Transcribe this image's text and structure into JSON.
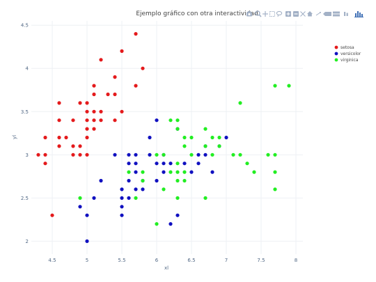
{
  "chart_data": {
    "type": "scatter",
    "title": "Ejemplo gráfico con otra interactividad",
    "xlabel": "xl",
    "ylabel": "yl",
    "xlim": [
      4.2,
      8.1
    ],
    "ylim": [
      1.85,
      4.55
    ],
    "x_ticks": [
      "4.5",
      "5",
      "5.5",
      "6",
      "6.5",
      "7",
      "7.5",
      "8"
    ],
    "y_ticks": [
      "2",
      "2.5",
      "3",
      "3.5",
      "4",
      "4.5"
    ],
    "grid": true,
    "legend_position": "top-right",
    "series": [
      {
        "name": "setosa",
        "color": "#e41a1c",
        "points": [
          [
            4.3,
            3.0
          ],
          [
            4.4,
            3.2
          ],
          [
            4.4,
            3.0
          ],
          [
            4.4,
            2.9
          ],
          [
            4.5,
            2.3
          ],
          [
            4.6,
            3.6
          ],
          [
            4.6,
            3.4
          ],
          [
            4.6,
            3.2
          ],
          [
            4.6,
            3.1
          ],
          [
            4.7,
            3.2
          ],
          [
            4.8,
            3.4
          ],
          [
            4.8,
            3.1
          ],
          [
            4.8,
            3.0
          ],
          [
            4.9,
            3.6
          ],
          [
            4.9,
            3.1
          ],
          [
            4.9,
            3.0
          ],
          [
            5.0,
            3.6
          ],
          [
            5.0,
            3.5
          ],
          [
            5.0,
            3.4
          ],
          [
            5.0,
            3.3
          ],
          [
            5.0,
            3.2
          ],
          [
            5.0,
            3.0
          ],
          [
            5.1,
            3.8
          ],
          [
            5.1,
            3.7
          ],
          [
            5.1,
            3.5
          ],
          [
            5.1,
            3.4
          ],
          [
            5.1,
            3.3
          ],
          [
            5.2,
            4.1
          ],
          [
            5.2,
            3.5
          ],
          [
            5.2,
            3.4
          ],
          [
            5.3,
            3.7
          ],
          [
            5.4,
            3.9
          ],
          [
            5.4,
            3.7
          ],
          [
            5.4,
            3.4
          ],
          [
            5.5,
            4.2
          ],
          [
            5.5,
            3.5
          ],
          [
            5.7,
            4.4
          ],
          [
            5.7,
            3.8
          ],
          [
            5.8,
            4.0
          ]
        ]
      },
      {
        "name": "versicolor",
        "color": "#1010c0",
        "points": [
          [
            4.9,
            2.4
          ],
          [
            5.0,
            2.3
          ],
          [
            5.0,
            2.0
          ],
          [
            5.1,
            2.5
          ],
          [
            5.2,
            2.7
          ],
          [
            5.4,
            3.0
          ],
          [
            5.5,
            2.6
          ],
          [
            5.5,
            2.5
          ],
          [
            5.5,
            2.4
          ],
          [
            5.5,
            2.3
          ],
          [
            5.6,
            3.0
          ],
          [
            5.6,
            2.9
          ],
          [
            5.6,
            2.7
          ],
          [
            5.6,
            2.5
          ],
          [
            5.7,
            3.0
          ],
          [
            5.7,
            2.9
          ],
          [
            5.7,
            2.8
          ],
          [
            5.7,
            2.6
          ],
          [
            5.8,
            2.7
          ],
          [
            5.8,
            2.6
          ],
          [
            5.9,
            3.2
          ],
          [
            5.9,
            3.0
          ],
          [
            6.0,
            3.4
          ],
          [
            6.0,
            2.9
          ],
          [
            6.0,
            2.7
          ],
          [
            6.1,
            3.0
          ],
          [
            6.1,
            2.9
          ],
          [
            6.1,
            2.8
          ],
          [
            6.2,
            2.9
          ],
          [
            6.2,
            2.2
          ],
          [
            6.3,
            3.3
          ],
          [
            6.3,
            2.3
          ],
          [
            6.4,
            2.9
          ],
          [
            6.5,
            2.8
          ],
          [
            6.6,
            3.0
          ],
          [
            6.6,
            2.9
          ],
          [
            6.7,
            3.1
          ],
          [
            6.7,
            3.0
          ],
          [
            6.8,
            2.8
          ],
          [
            6.9,
            3.1
          ],
          [
            7.0,
            3.2
          ]
        ]
      },
      {
        "name": "virginica",
        "color": "#22ee22",
        "points": [
          [
            4.9,
            2.5
          ],
          [
            5.6,
            2.8
          ],
          [
            5.7,
            2.5
          ],
          [
            5.8,
            2.8
          ],
          [
            5.8,
            2.7
          ],
          [
            6.0,
            3.0
          ],
          [
            6.0,
            2.2
          ],
          [
            6.1,
            3.0
          ],
          [
            6.1,
            2.6
          ],
          [
            6.2,
            3.4
          ],
          [
            6.2,
            2.8
          ],
          [
            6.3,
            3.4
          ],
          [
            6.3,
            3.3
          ],
          [
            6.3,
            2.9
          ],
          [
            6.3,
            2.8
          ],
          [
            6.3,
            2.7
          ],
          [
            6.3,
            2.5
          ],
          [
            6.4,
            3.2
          ],
          [
            6.4,
            3.1
          ],
          [
            6.4,
            2.8
          ],
          [
            6.4,
            2.7
          ],
          [
            6.5,
            3.2
          ],
          [
            6.5,
            3.0
          ],
          [
            6.7,
            3.3
          ],
          [
            6.7,
            3.1
          ],
          [
            6.7,
            2.5
          ],
          [
            6.8,
            3.2
          ],
          [
            6.8,
            3.0
          ],
          [
            6.9,
            3.2
          ],
          [
            6.9,
            3.1
          ],
          [
            7.1,
            3.0
          ],
          [
            7.2,
            3.6
          ],
          [
            7.2,
            3.0
          ],
          [
            7.3,
            2.9
          ],
          [
            7.4,
            2.8
          ],
          [
            7.6,
            3.0
          ],
          [
            7.7,
            3.8
          ],
          [
            7.7,
            3.0
          ],
          [
            7.7,
            2.8
          ],
          [
            7.7,
            2.6
          ],
          [
            7.9,
            3.8
          ]
        ]
      }
    ]
  },
  "modebar": {
    "icons": [
      "camera-icon",
      "zoom-icon",
      "pan-icon",
      "box-select-icon",
      "lasso-select-icon",
      "zoom-in-icon",
      "zoom-out-icon",
      "autoscale-icon",
      "reset-axes-icon",
      "spike-lines-icon",
      "hover-closest-icon",
      "hover-compare-icon",
      "compare-data-icon",
      "plotly-logo-icon"
    ]
  }
}
